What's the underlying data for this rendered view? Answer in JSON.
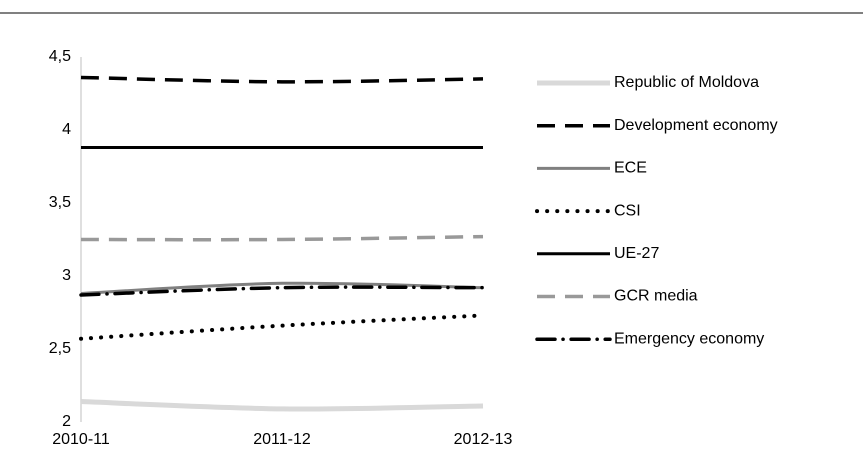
{
  "chart_data": {
    "type": "line",
    "categories": [
      "2010-11",
      "2011-12",
      "2012-13"
    ],
    "series": [
      {
        "name": "Republic of Moldova",
        "color": "#d9d9d9",
        "style": "solid",
        "values": [
          2.14,
          2.09,
          2.11
        ]
      },
      {
        "name": "Development economy",
        "color": "#000000",
        "style": "dashed",
        "values": [
          4.36,
          4.33,
          4.35
        ]
      },
      {
        "name": "ECE",
        "color": "#808080",
        "style": "solid",
        "values": [
          2.88,
          2.95,
          2.92
        ]
      },
      {
        "name": "CSI",
        "color": "#000000",
        "style": "dotted",
        "values": [
          2.57,
          2.66,
          2.73
        ]
      },
      {
        "name": "UE-27",
        "color": "#000000",
        "style": "solid",
        "values": [
          3.88,
          3.88,
          3.88
        ]
      },
      {
        "name": "GCR media",
        "color": "#999999",
        "style": "dashed",
        "values": [
          3.25,
          3.25,
          3.27
        ]
      },
      {
        "name": "Emergency economy",
        "color": "#000000",
        "style": "dashdot",
        "values": [
          2.87,
          2.92,
          2.92
        ]
      }
    ],
    "ylim": [
      2,
      4.5
    ],
    "yticks": [
      2,
      {
        "value": 2.5,
        "label": "2,5"
      },
      3,
      {
        "value": 3.5,
        "label": "3,5"
      },
      4,
      {
        "value": 4.5,
        "label": "4,5"
      }
    ],
    "grid": false,
    "legend": "right"
  }
}
